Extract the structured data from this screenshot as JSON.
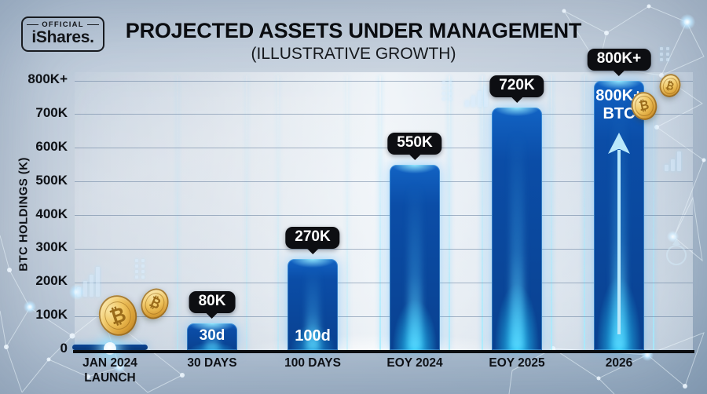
{
  "logo": {
    "official_label": "OFFICIAL",
    "brand": "iShares."
  },
  "header": {
    "title": "PROJECTED ASSETS UNDER MANAGEMENT",
    "subtitle": "(ILLUSTRATIVE GROWTH)"
  },
  "icons": {
    "bitcoin_symbol": "₿",
    "coin": "bitcoin-coin-icon",
    "growth_arrow": "up-arrow-icon"
  },
  "colors": {
    "bar_blue": "#0b4da7",
    "glow_cyan": "#3fd0ff",
    "callout_bg": "#0d0e12",
    "axis_black": "#0b0d10",
    "coin_gold": "#e9b64a",
    "background_blue_gray": "#b7c6d7"
  },
  "chart_data": {
    "type": "bar",
    "title": "PROJECTED ASSETS UNDER MANAGEMENT",
    "subtitle": "(ILLUSTRATIVE GROWTH)",
    "xlabel": "",
    "ylabel": "BTC HOLDINGS (K)",
    "ylim": [
      0,
      800
    ],
    "unit": "thousands of BTC",
    "grid": true,
    "legend_position": "none",
    "y_ticks": [
      "800K+",
      "700K",
      "600K",
      "500K",
      "400K",
      "300K",
      "200K",
      "100K",
      "0"
    ],
    "categories": [
      "JAN 2024\nLAUNCH",
      "30 DAYS",
      "100 DAYS",
      "EOY 2024",
      "EOY 2025",
      "2026"
    ],
    "values": [
      5,
      80,
      270,
      550,
      720,
      800
    ],
    "callouts": [
      null,
      "80K",
      "270K",
      "550K",
      "720K",
      "800K+"
    ],
    "bar_labels": [
      null,
      "30d",
      "100d",
      null,
      null,
      "800K+\nBTC"
    ]
  }
}
